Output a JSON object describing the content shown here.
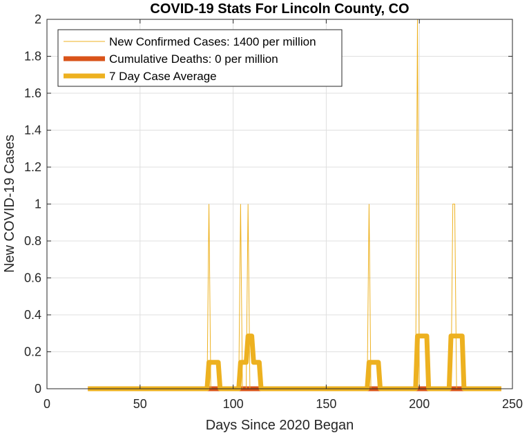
{
  "chart_data": {
    "type": "line",
    "title": "COVID-19 Stats For Lincoln County, CO",
    "xlabel": "Days Since 2020 Began",
    "ylabel": "New COVID-19 Cases",
    "xlim": [
      0,
      250
    ],
    "ylim": [
      0,
      2
    ],
    "xticks": [
      "0",
      "50",
      "100",
      "150",
      "200",
      "250"
    ],
    "yticks": [
      "0",
      "0.2",
      "0.4",
      "0.6",
      "0.8",
      "1",
      "1.2",
      "1.4",
      "1.6",
      "1.8",
      "2"
    ],
    "grid": true,
    "legend_position": "top-left",
    "x_range": [
      22,
      244
    ],
    "series": [
      {
        "name": "New Confirmed Cases: 1400 per million",
        "color": "#EDB120",
        "points": [
          [
            87,
            1
          ],
          [
            104,
            1
          ],
          [
            108,
            1
          ],
          [
            173,
            1
          ],
          [
            199,
            2
          ],
          [
            218,
            1
          ],
          [
            219,
            1
          ]
        ]
      },
      {
        "name": "Cumulative Deaths: 0 per million",
        "color": "#D95319",
        "points": []
      },
      {
        "name": "7 Day Case Average",
        "color": "#EDB120",
        "points": [
          [
            22,
            0
          ],
          [
            86,
            0
          ],
          [
            87,
            0.142857
          ],
          [
            92,
            0.142857
          ],
          [
            93,
            0
          ],
          [
            103,
            0
          ],
          [
            104,
            0.142857
          ],
          [
            107,
            0.142857
          ],
          [
            108,
            0.285714
          ],
          [
            110,
            0.285714
          ],
          [
            111,
            0.142857
          ],
          [
            114,
            0.142857
          ],
          [
            115,
            0
          ],
          [
            172,
            0
          ],
          [
            173,
            0.142857
          ],
          [
            178,
            0.142857
          ],
          [
            179,
            0
          ],
          [
            198,
            0
          ],
          [
            199,
            0.285714
          ],
          [
            204,
            0.285714
          ],
          [
            205,
            0
          ],
          [
            216,
            0
          ],
          [
            217,
            0.285714
          ],
          [
            223,
            0.285714
          ],
          [
            224,
            0
          ],
          [
            244,
            0
          ]
        ]
      }
    ]
  }
}
